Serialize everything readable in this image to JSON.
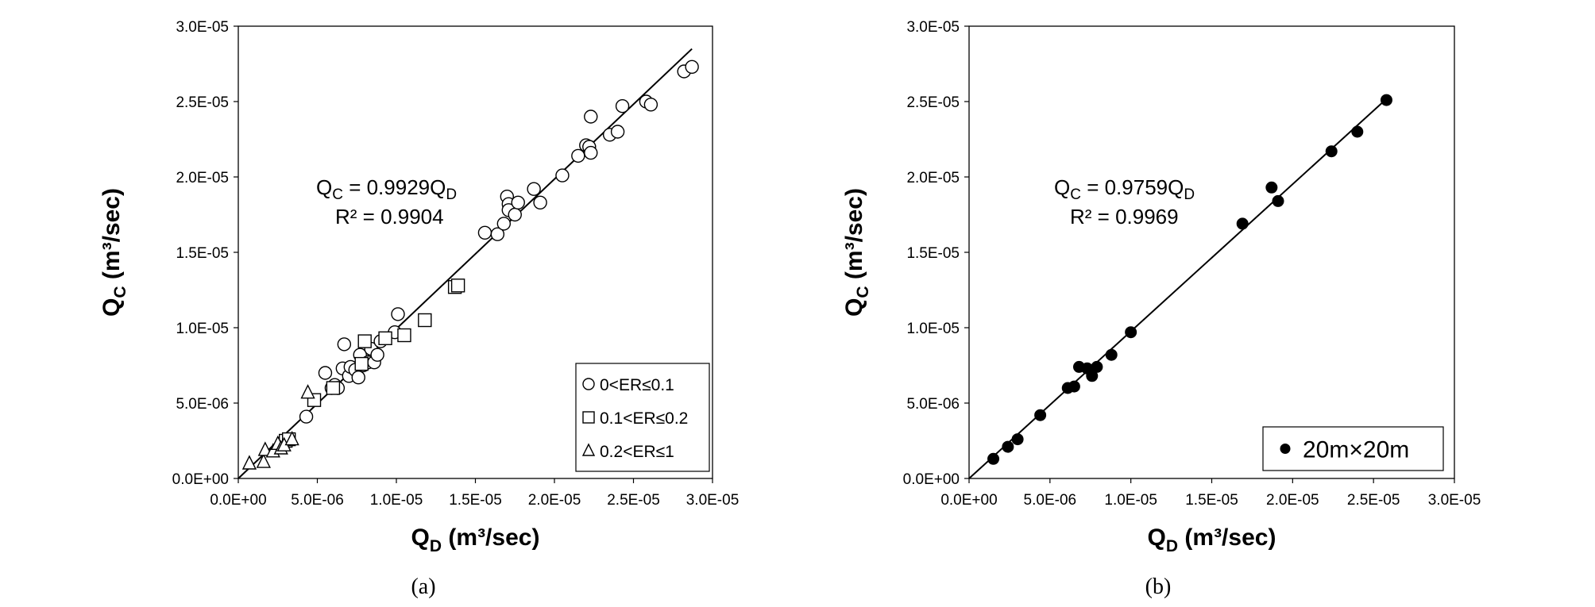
{
  "chart_data": [
    {
      "type": "scatter",
      "caption": "(a)",
      "xlabel": {
        "main": "Q",
        "sub": "D",
        "unit": " (m³/sec)"
      },
      "ylabel": {
        "main": "Q",
        "sub": "C",
        "unit": " (m³/sec)"
      },
      "xlim": [
        0,
        3e-05
      ],
      "ylim": [
        0,
        3e-05
      ],
      "xticks": [
        "0.0E+00",
        "5.0E-06",
        "1.0E-05",
        "1.5E-05",
        "2.0E-05",
        "2.5E-05",
        "3.0E-05"
      ],
      "yticks": [
        "0.0E+00",
        "5.0E-06",
        "1.0E-05",
        "1.5E-05",
        "2.0E-05",
        "2.5E-05",
        "3.0E-05"
      ],
      "equation": {
        "lhs": "Q",
        "lhs_sub": "C",
        "rhs": " = 0.9929Q",
        "rhs_sub": "D"
      },
      "r2": "R² = 0.9904",
      "fit_slope": 0.9929,
      "fit_x_range": [
        0,
        2.87e-05
      ],
      "legend_position": "bottom-right",
      "series": [
        {
          "name": "0<ER≤0.1",
          "marker": "circle",
          "points": [
            [
              4.3e-06,
              4.1e-06
            ],
            [
              5.5e-06,
              7e-06
            ],
            [
              5.9e-06,
              6e-06
            ],
            [
              6.1e-06,
              6.2e-06
            ],
            [
              6.3e-06,
              6e-06
            ],
            [
              6.6e-06,
              7.3e-06
            ],
            [
              6.7e-06,
              8.9e-06
            ],
            [
              7e-06,
              6.8e-06
            ],
            [
              7.1e-06,
              7.4e-06
            ],
            [
              7.4e-06,
              7.2e-06
            ],
            [
              7.6e-06,
              6.7e-06
            ],
            [
              7.7e-06,
              8.2e-06
            ],
            [
              7.9e-06,
              7.5e-06
            ],
            [
              8.2e-06,
              7.7e-06
            ],
            [
              8.4e-06,
              8.6e-06
            ],
            [
              8.6e-06,
              7.7e-06
            ],
            [
              8.8e-06,
              8.2e-06
            ],
            [
              9e-06,
              9.1e-06
            ],
            [
              9.9e-06,
              9.7e-06
            ],
            [
              1.01e-05,
              1.09e-05
            ],
            [
              1.56e-05,
              1.63e-05
            ],
            [
              1.64e-05,
              1.62e-05
            ],
            [
              1.68e-05,
              1.69e-05
            ],
            [
              1.7e-05,
              1.87e-05
            ],
            [
              1.71e-05,
              1.82e-05
            ],
            [
              1.71e-05,
              1.78e-05
            ],
            [
              1.75e-05,
              1.75e-05
            ],
            [
              1.77e-05,
              1.83e-05
            ],
            [
              1.87e-05,
              1.92e-05
            ],
            [
              1.91e-05,
              1.83e-05
            ],
            [
              2.05e-05,
              2.01e-05
            ],
            [
              2.15e-05,
              2.14e-05
            ],
            [
              2.2e-05,
              2.21e-05
            ],
            [
              2.22e-05,
              2.2e-05
            ],
            [
              2.23e-05,
              2.16e-05
            ],
            [
              2.23e-05,
              2.4e-05
            ],
            [
              2.35e-05,
              2.28e-05
            ],
            [
              2.4e-05,
              2.3e-05
            ],
            [
              2.43e-05,
              2.47e-05
            ],
            [
              2.58e-05,
              2.5e-05
            ],
            [
              2.61e-05,
              2.48e-05
            ],
            [
              2.82e-05,
              2.7e-05
            ],
            [
              2.87e-05,
              2.73e-05
            ]
          ]
        },
        {
          "name": "0.1<ER≤0.2",
          "marker": "square",
          "points": [
            [
              3e-06,
              2.5e-06
            ],
            [
              3.2e-06,
              2.6e-06
            ],
            [
              4.8e-06,
              5.2e-06
            ],
            [
              6e-06,
              6e-06
            ],
            [
              7.8e-06,
              7.6e-06
            ],
            [
              8e-06,
              9.1e-06
            ],
            [
              9.3e-06,
              9.3e-06
            ],
            [
              1.05e-05,
              9.5e-06
            ],
            [
              1.18e-05,
              1.05e-05
            ],
            [
              1.37e-05,
              1.27e-05
            ],
            [
              1.39e-05,
              1.28e-05
            ]
          ]
        },
        {
          "name": "0.2<ER≤1",
          "marker": "triangle",
          "points": [
            [
              7e-07,
              1e-06
            ],
            [
              1.6e-06,
              1.1e-06
            ],
            [
              1.7e-06,
              1.9e-06
            ],
            [
              2.2e-06,
              1.8e-06
            ],
            [
              2.5e-06,
              2.3e-06
            ],
            [
              2.7e-06,
              2e-06
            ],
            [
              2.9e-06,
              2.2e-06
            ],
            [
              3.4e-06,
              2.6e-06
            ],
            [
              4.4e-06,
              5.7e-06
            ]
          ]
        }
      ]
    },
    {
      "type": "scatter",
      "caption": "(b)",
      "xlabel": {
        "main": "Q",
        "sub": "D",
        "unit": " (m³/sec)"
      },
      "ylabel": {
        "main": "Q",
        "sub": "C",
        "unit": " (m³/sec)"
      },
      "xlim": [
        0,
        3e-05
      ],
      "ylim": [
        0,
        3e-05
      ],
      "xticks": [
        "0.0E+00",
        "5.0E-06",
        "1.0E-05",
        "1.5E-05",
        "2.0E-05",
        "2.5E-05",
        "3.0E-05"
      ],
      "yticks": [
        "0.0E+00",
        "5.0E-06",
        "1.0E-05",
        "1.5E-05",
        "2.0E-05",
        "2.5E-05",
        "3.0E-05"
      ],
      "equation": {
        "lhs": "Q",
        "lhs_sub": "C",
        "rhs": " = 0.9759Q",
        "rhs_sub": "D"
      },
      "r2": "R² = 0.9969",
      "fit_slope": 0.9759,
      "fit_x_range": [
        0,
        2.6e-05
      ],
      "legend_position": "bottom-right",
      "series": [
        {
          "name": "20m×20m",
          "marker": "filled-circle",
          "points": [
            [
              1.5e-06,
              1.3e-06
            ],
            [
              2.4e-06,
              2.1e-06
            ],
            [
              3e-06,
              2.6e-06
            ],
            [
              4.4e-06,
              4.2e-06
            ],
            [
              6.1e-06,
              6e-06
            ],
            [
              6.5e-06,
              6.1e-06
            ],
            [
              6.8e-06,
              7.4e-06
            ],
            [
              7.3e-06,
              7.3e-06
            ],
            [
              7.6e-06,
              6.8e-06
            ],
            [
              7.9e-06,
              7.4e-06
            ],
            [
              8.8e-06,
              8.2e-06
            ],
            [
              1e-05,
              9.7e-06
            ],
            [
              1.69e-05,
              1.69e-05
            ],
            [
              1.87e-05,
              1.93e-05
            ],
            [
              1.91e-05,
              1.84e-05
            ],
            [
              2.24e-05,
              2.17e-05
            ],
            [
              2.4e-05,
              2.3e-05
            ],
            [
              2.58e-05,
              2.51e-05
            ]
          ]
        }
      ]
    }
  ]
}
